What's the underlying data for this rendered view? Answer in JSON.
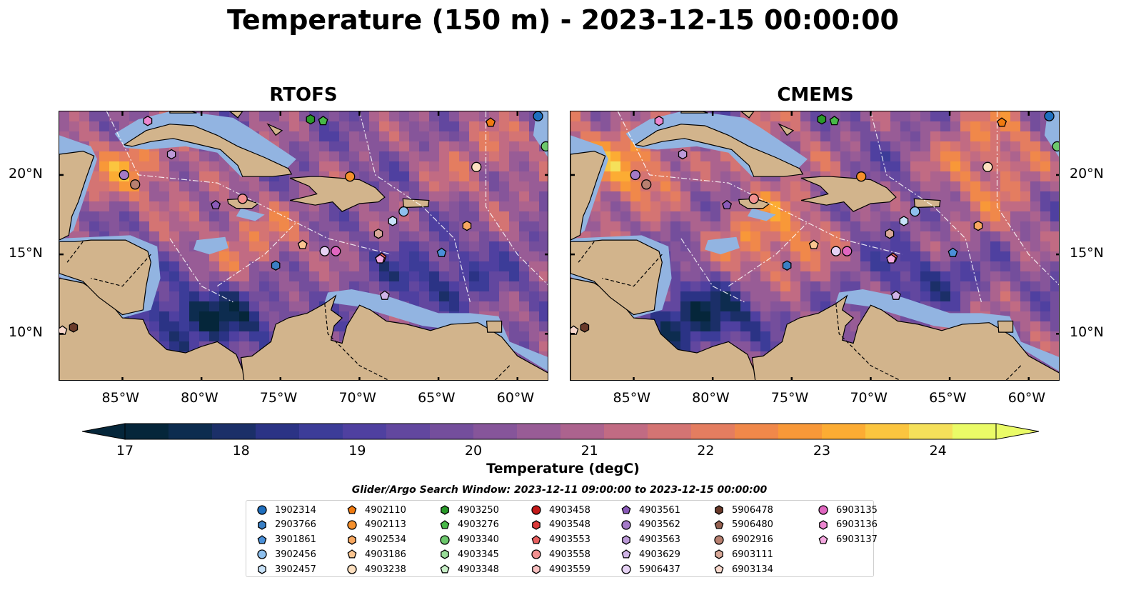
{
  "title": "Temperature (150 m) - 2023-12-15 00:00:00",
  "panels": [
    {
      "name": "RTOFS"
    },
    {
      "name": "CMEMS"
    }
  ],
  "map": {
    "lon_range": [
      -89,
      -58
    ],
    "lat_range": [
      7,
      24
    ],
    "lon_ticks": [
      "85°W",
      "80°W",
      "75°W",
      "70°W",
      "65°W",
      "60°W"
    ],
    "lon_tick_values": [
      -85,
      -80,
      -75,
      -70,
      -65,
      -60
    ],
    "lat_ticks": [
      "20°N",
      "15°N",
      "10°N"
    ],
    "lat_tick_values": [
      20,
      15,
      10
    ],
    "land_color": "#d2b48c",
    "shelf_color": "#92b4e1"
  },
  "colorbar": {
    "label": "Temperature (degC)",
    "min": 17,
    "max": 24.5,
    "ticks": [
      "17",
      "18",
      "19",
      "20",
      "21",
      "22",
      "23",
      "24"
    ],
    "tick_values": [
      17,
      18,
      19,
      20,
      21,
      22,
      23,
      24
    ],
    "colors": [
      "#05263a",
      "#0d2c4f",
      "#1b2f68",
      "#2b3385",
      "#3c3c98",
      "#4f40a0",
      "#62479f",
      "#744e9c",
      "#86559a",
      "#985c96",
      "#ac638e",
      "#c16b83",
      "#d47473",
      "#e47d60",
      "#f0884a",
      "#f89838",
      "#fcac33",
      "#fbc53f",
      "#f5e05a",
      "#eafb67"
    ]
  },
  "legend": {
    "title": "Glider/Argo Search Window: 2023-12-11 09:00:00 to 2023-12-15 00:00:00",
    "entries": [
      {
        "id": "1902314",
        "shape": "circle",
        "color": "#1f6fbf"
      },
      {
        "id": "2903766",
        "shape": "hexagon",
        "color": "#3a7fc4"
      },
      {
        "id": "3901861",
        "shape": "pentagon",
        "color": "#4a90d9"
      },
      {
        "id": "3902456",
        "shape": "circle",
        "color": "#8ec0ee"
      },
      {
        "id": "3902457",
        "shape": "hexagon",
        "color": "#c8e2f8"
      },
      {
        "id": "4902110",
        "shape": "pentagon",
        "color": "#f07a10"
      },
      {
        "id": "4902113",
        "shape": "circle",
        "color": "#f5902c"
      },
      {
        "id": "4902534",
        "shape": "hexagon",
        "color": "#f8a860"
      },
      {
        "id": "4903186",
        "shape": "pentagon",
        "color": "#fbc590"
      },
      {
        "id": "4903238",
        "shape": "circle",
        "color": "#fde0c0"
      },
      {
        "id": "4903250",
        "shape": "hexagon",
        "color": "#2a9a2a"
      },
      {
        "id": "4903276",
        "shape": "pentagon",
        "color": "#48b848"
      },
      {
        "id": "4903340",
        "shape": "circle",
        "color": "#6cc86c"
      },
      {
        "id": "4903345",
        "shape": "hexagon",
        "color": "#98dc98"
      },
      {
        "id": "4903348",
        "shape": "pentagon",
        "color": "#c8f0c8"
      },
      {
        "id": "4903458",
        "shape": "circle",
        "color": "#c41a1a"
      },
      {
        "id": "4903548",
        "shape": "hexagon",
        "color": "#dc3a3a"
      },
      {
        "id": "4903553",
        "shape": "pentagon",
        "color": "#e86060"
      },
      {
        "id": "4903558",
        "shape": "circle",
        "color": "#f29090"
      },
      {
        "id": "4903559",
        "shape": "hexagon",
        "color": "#f8c0c0"
      },
      {
        "id": "4903561",
        "shape": "pentagon",
        "color": "#8a5ab8"
      },
      {
        "id": "4903562",
        "shape": "circle",
        "color": "#a47ac8"
      },
      {
        "id": "4903563",
        "shape": "hexagon",
        "color": "#bc9ad8"
      },
      {
        "id": "4903629",
        "shape": "pentagon",
        "color": "#d0b4e6"
      },
      {
        "id": "5906437",
        "shape": "circle",
        "color": "#e6d2f4"
      },
      {
        "id": "5906478",
        "shape": "hexagon",
        "color": "#6a3a2a"
      },
      {
        "id": "5906480",
        "shape": "pentagon",
        "color": "#946050"
      },
      {
        "id": "6902916",
        "shape": "circle",
        "color": "#b88070"
      },
      {
        "id": "6903111",
        "shape": "hexagon",
        "color": "#d8a898"
      },
      {
        "id": "6903134",
        "shape": "pentagon",
        "color": "#f8d8cc"
      },
      {
        "id": "6903135",
        "shape": "circle",
        "color": "#e066c0"
      },
      {
        "id": "6903136",
        "shape": "hexagon",
        "color": "#ec86d0"
      },
      {
        "id": "6903137",
        "shape": "pentagon",
        "color": "#f4a8e0"
      }
    ]
  },
  "markers": [
    {
      "id": "1902314",
      "lon": -58.7,
      "lat": 23.7
    },
    {
      "id": "2903766",
      "lon": -75.3,
      "lat": 14.3
    },
    {
      "id": "3901861",
      "lon": -64.8,
      "lat": 15.1
    },
    {
      "id": "3902456",
      "lon": -67.2,
      "lat": 17.7
    },
    {
      "id": "3902457",
      "lon": -67.9,
      "lat": 17.1
    },
    {
      "id": "4902110",
      "lon": -61.7,
      "lat": 23.3
    },
    {
      "id": "4902113",
      "lon": -70.6,
      "lat": 19.9
    },
    {
      "id": "4902534",
      "lon": -63.2,
      "lat": 16.8
    },
    {
      "id": "4903186",
      "lon": -73.6,
      "lat": 15.6
    },
    {
      "id": "4903238",
      "lon": -62.6,
      "lat": 20.5
    },
    {
      "id": "4903250",
      "lon": -73.1,
      "lat": 23.5
    },
    {
      "id": "4903276",
      "lon": -72.3,
      "lat": 23.4
    },
    {
      "id": "4903340",
      "lon": -58.2,
      "lat": 21.8
    },
    {
      "id": "4903553",
      "lon": -68.6,
      "lat": 14.8
    },
    {
      "id": "4903558",
      "lon": -77.4,
      "lat": 18.5
    },
    {
      "id": "4903561",
      "lon": -79.1,
      "lat": 18.1
    },
    {
      "id": "4903562",
      "lon": -84.9,
      "lat": 20.0
    },
    {
      "id": "4903563",
      "lon": -81.9,
      "lat": 21.3
    },
    {
      "id": "4903629",
      "lon": -68.4,
      "lat": 12.4
    },
    {
      "id": "5906437",
      "lon": -72.2,
      "lat": 15.2
    },
    {
      "id": "5906478",
      "lon": -88.1,
      "lat": 10.4
    },
    {
      "id": "6902916",
      "lon": -84.2,
      "lat": 19.4
    },
    {
      "id": "6903111",
      "lon": -68.8,
      "lat": 16.3
    },
    {
      "id": "6903134",
      "lon": -88.8,
      "lat": 10.2
    },
    {
      "id": "6903135",
      "lon": -71.5,
      "lat": 15.2
    },
    {
      "id": "6903136",
      "lon": -83.4,
      "lat": 23.4
    },
    {
      "id": "6903137",
      "lon": -68.7,
      "lat": 14.7
    }
  ]
}
